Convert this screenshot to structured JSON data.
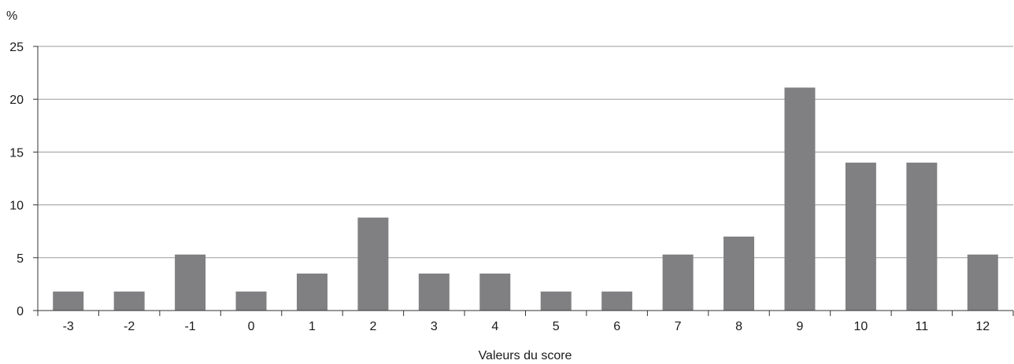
{
  "chart_data": {
    "type": "bar",
    "title": "",
    "ylabel": "%",
    "xlabel": "Valeurs du score",
    "ylim": [
      0,
      25
    ],
    "yticks": [
      "0",
      "5",
      "10",
      "15",
      "20",
      "25"
    ],
    "categories": [
      "-3",
      "-2",
      "-1",
      "0",
      "1",
      "2",
      "3",
      "4",
      "5",
      "6",
      "7",
      "8",
      "9",
      "10",
      "11",
      "12"
    ],
    "values": [
      1.8,
      1.8,
      5.3,
      1.8,
      3.5,
      8.8,
      3.5,
      3.5,
      1.8,
      1.8,
      5.3,
      7.0,
      21.1,
      14.0,
      14.0,
      5.3
    ],
    "grid": true,
    "legend": "none",
    "colors": {
      "bar": "#808083",
      "grid": "#9a9a9a",
      "axis": "#333333"
    }
  }
}
